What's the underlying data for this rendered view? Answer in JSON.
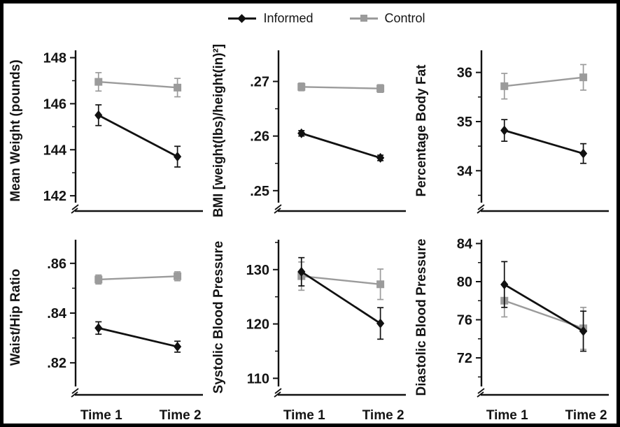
{
  "legend": {
    "items": [
      {
        "label": "Informed",
        "marker": "diamond",
        "color": "#111111"
      },
      {
        "label": "Control",
        "marker": "square",
        "color": "#9B9B9B"
      }
    ]
  },
  "x_categories": [
    "Time 1",
    "Time 2"
  ],
  "chart_data": [
    {
      "id": "mean-weight",
      "type": "line",
      "ylabel": "Mean Weight (pounds)",
      "categories": [
        "Time 1",
        "Time 2"
      ],
      "show_x_labels": false,
      "ylim": [
        141.7,
        148.32
      ],
      "axis_break": true,
      "yticks": [
        142,
        144,
        146,
        148
      ],
      "ytick_labels": [
        "142",
        "144",
        "146",
        "148"
      ],
      "yticks_minor": [
        143,
        145,
        147
      ],
      "series": [
        {
          "name": "Informed",
          "color": "#111111",
          "marker": "diamond",
          "values": [
            145.5,
            143.7
          ],
          "errors": [
            0.45,
            0.45
          ]
        },
        {
          "name": "Control",
          "color": "#9B9B9B",
          "marker": "square",
          "values": [
            146.95,
            146.7
          ],
          "errors": [
            0.4,
            0.4
          ]
        }
      ]
    },
    {
      "id": "bmi",
      "type": "line",
      "ylabel": "BMI [weight(lbs)/height(in)²]",
      "categories": [
        "Time 1",
        "Time 2"
      ],
      "show_x_labels": false,
      "ylim": [
        0.2478,
        0.2757
      ],
      "axis_break": true,
      "yticks": [
        0.25,
        0.26,
        0.27
      ],
      "ytick_labels": [
        ".25",
        ".26",
        ".27"
      ],
      "yticks_minor": [
        0.255,
        0.265
      ],
      "series": [
        {
          "name": "Informed",
          "color": "#111111",
          "marker": "diamond",
          "values": [
            0.2605,
            0.256
          ],
          "errors": [
            0.0005,
            0.0005
          ]
        },
        {
          "name": "Control",
          "color": "#9B9B9B",
          "marker": "square",
          "values": [
            0.269,
            0.2687
          ],
          "errors": [
            0.0007,
            0.0007
          ]
        }
      ]
    },
    {
      "id": "body-fat",
      "type": "line",
      "ylabel": "Percentage Body Fat",
      "categories": [
        "Time 1",
        "Time 2"
      ],
      "show_x_labels": false,
      "ylim": [
        33.35,
        36.45
      ],
      "axis_break": true,
      "yticks": [
        34,
        35,
        36
      ],
      "ytick_labels": [
        "34",
        "35",
        "36"
      ],
      "yticks_minor": [
        33.5,
        34.5,
        35.5
      ],
      "series": [
        {
          "name": "Informed",
          "color": "#111111",
          "marker": "diamond",
          "values": [
            34.82,
            34.35
          ],
          "errors": [
            0.22,
            0.2
          ]
        },
        {
          "name": "Control",
          "color": "#9B9B9B",
          "marker": "square",
          "values": [
            35.72,
            35.9
          ],
          "errors": [
            0.26,
            0.26
          ]
        }
      ]
    },
    {
      "id": "waist-hip",
      "type": "line",
      "ylabel": "Waist/Hip Ratio",
      "categories": [
        "Time 1",
        "Time 2"
      ],
      "show_x_labels": true,
      "ylim": [
        0.8105,
        0.8695
      ],
      "axis_break": true,
      "yticks": [
        0.82,
        0.84,
        0.86
      ],
      "ytick_labels": [
        ".82",
        ".84",
        ".86"
      ],
      "yticks_minor": [
        0.83,
        0.85
      ],
      "series": [
        {
          "name": "Informed",
          "color": "#111111",
          "marker": "diamond",
          "values": [
            0.834,
            0.8265
          ],
          "errors": [
            0.0025,
            0.0022
          ]
        },
        {
          "name": "Control",
          "color": "#9B9B9B",
          "marker": "square",
          "values": [
            0.8535,
            0.8548
          ],
          "errors": [
            0.0018,
            0.0018
          ]
        }
      ]
    },
    {
      "id": "systolic",
      "type": "line",
      "ylabel": "Systolic Blood Pressure",
      "categories": [
        "Time 1",
        "Time 2"
      ],
      "show_x_labels": true,
      "ylim": [
        108.5,
        135.5
      ],
      "axis_break": true,
      "yticks": [
        110,
        120,
        130
      ],
      "ytick_labels": [
        "110",
        "120",
        "130"
      ],
      "yticks_minor": [
        115,
        125,
        135
      ],
      "series": [
        {
          "name": "Informed",
          "color": "#111111",
          "marker": "diamond",
          "values": [
            129.6,
            120.1
          ],
          "errors": [
            2.6,
            2.9
          ]
        },
        {
          "name": "Control",
          "color": "#9B9B9B",
          "marker": "square",
          "values": [
            128.8,
            127.3
          ],
          "errors": [
            2.6,
            2.8
          ]
        }
      ]
    },
    {
      "id": "diastolic",
      "type": "line",
      "ylabel": "Diastolic Blood Pressure",
      "categories": [
        "Time 1",
        "Time 2"
      ],
      "show_x_labels": true,
      "ylim": [
        69.0,
        84.4
      ],
      "axis_break": true,
      "yticks": [
        72,
        76,
        80,
        84
      ],
      "ytick_labels": [
        "72",
        "76",
        "80",
        "84"
      ],
      "yticks_minor": [
        70,
        74,
        78,
        82
      ],
      "series": [
        {
          "name": "Informed",
          "color": "#111111",
          "marker": "diamond",
          "values": [
            79.7,
            74.8
          ],
          "errors": [
            2.4,
            2.1
          ]
        },
        {
          "name": "Control",
          "color": "#9B9B9B",
          "marker": "square",
          "values": [
            78.0,
            75.1
          ],
          "errors": [
            1.7,
            2.2
          ]
        }
      ]
    }
  ]
}
